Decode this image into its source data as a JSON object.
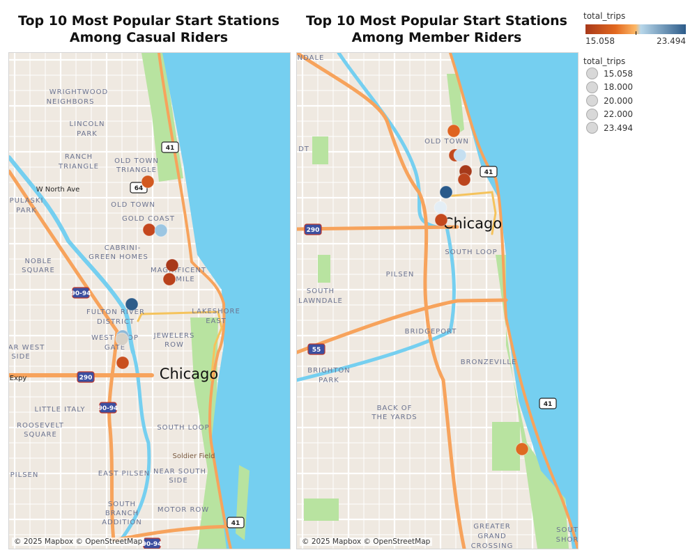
{
  "titles": {
    "casual": "Top 10 Most Popular Start Stations\nAmong Casual Riders",
    "member": "Top 10 Most Popular Start Stations\nAmong Member Riders"
  },
  "attribution": "© 2025 Mapbox © OpenStreetMap",
  "legend": {
    "color_title": "total_trips",
    "color_min": "15.058",
    "color_max": "23.494",
    "color_scale": [
      "#a8391a",
      "#e2681f",
      "#fdb866",
      "#b8d7ea",
      "#2d5c8a"
    ],
    "size_title": "total_trips",
    "size_items": [
      "15.058",
      "18.000",
      "20.000",
      "22.000",
      "23.494"
    ]
  },
  "colors": {
    "land": "#efe9e1",
    "water": "#75cff0",
    "park": "#b8e3a0",
    "highway": "#f7a35c",
    "road": "#ffffff"
  },
  "casual_map": {
    "labels": [
      "WRIGHTWOOD",
      "NEIGHBORS",
      "LINCOLN",
      "PARK",
      "RANCH",
      "TRIANGLE",
      "OLD TOWN",
      "TRIANGLE",
      "W North Ave",
      "PULASKI",
      "PARK",
      "OLD TOWN",
      "GOLD COAST",
      "CABRINI-",
      "GREEN HOMES",
      "NOBLE",
      "SQUARE",
      "MAGNIFICENT",
      "MILE",
      "FULTON RIVER",
      "DISTRICT",
      "LAKESHORE",
      "EAST",
      "WEST LOOP",
      "GATE",
      "JEWELERS",
      "ROW",
      "AR WEST",
      "SIDE",
      "Chicago",
      "Expy",
      "LITTLE ITALY",
      "ROOSEVELT",
      "SQUARE",
      "SOUTH LOOP",
      "Soldier Field",
      "PILSEN",
      "EAST PILSEN",
      "NEAR SOUTH",
      "SIDE",
      "SOUTH",
      "BRANCH",
      "ADDITION",
      "MOTOR ROW"
    ],
    "shields": [
      "41",
      "64",
      "90-94",
      "290",
      "90-94",
      "41",
      "90-94"
    ],
    "stations": [
      "#d2591f",
      "#c4471e",
      "#9cc6e2",
      "#a8391a",
      "#b9421c",
      "#2e5d8a",
      "#8fb8d6",
      "#d6d0c6",
      "#c9501f"
    ]
  },
  "member_map": {
    "labels": [
      "NDALE",
      "DT",
      "OLD TOWN",
      "Chicago",
      "SOUTH LOOP",
      "PILSEN",
      "SOUTH",
      "LAWNDALE",
      "BRIDGEPORT",
      "BRIGHTON",
      "PARK",
      "BRONZEVILLE",
      "BACK OF",
      "THE YARDS",
      "GREATER",
      "GRAND",
      "CROSSING",
      "SOUT",
      "SHOR"
    ],
    "shields": [
      "41",
      "290",
      "55",
      "41"
    ],
    "stations": [
      "#df6320",
      "#c24a1e",
      "#c5dff0",
      "#a63a1a",
      "#bb441c",
      "#2a5a8a",
      "#e4eef5",
      "#c4491d",
      "#de6a22"
    ]
  }
}
